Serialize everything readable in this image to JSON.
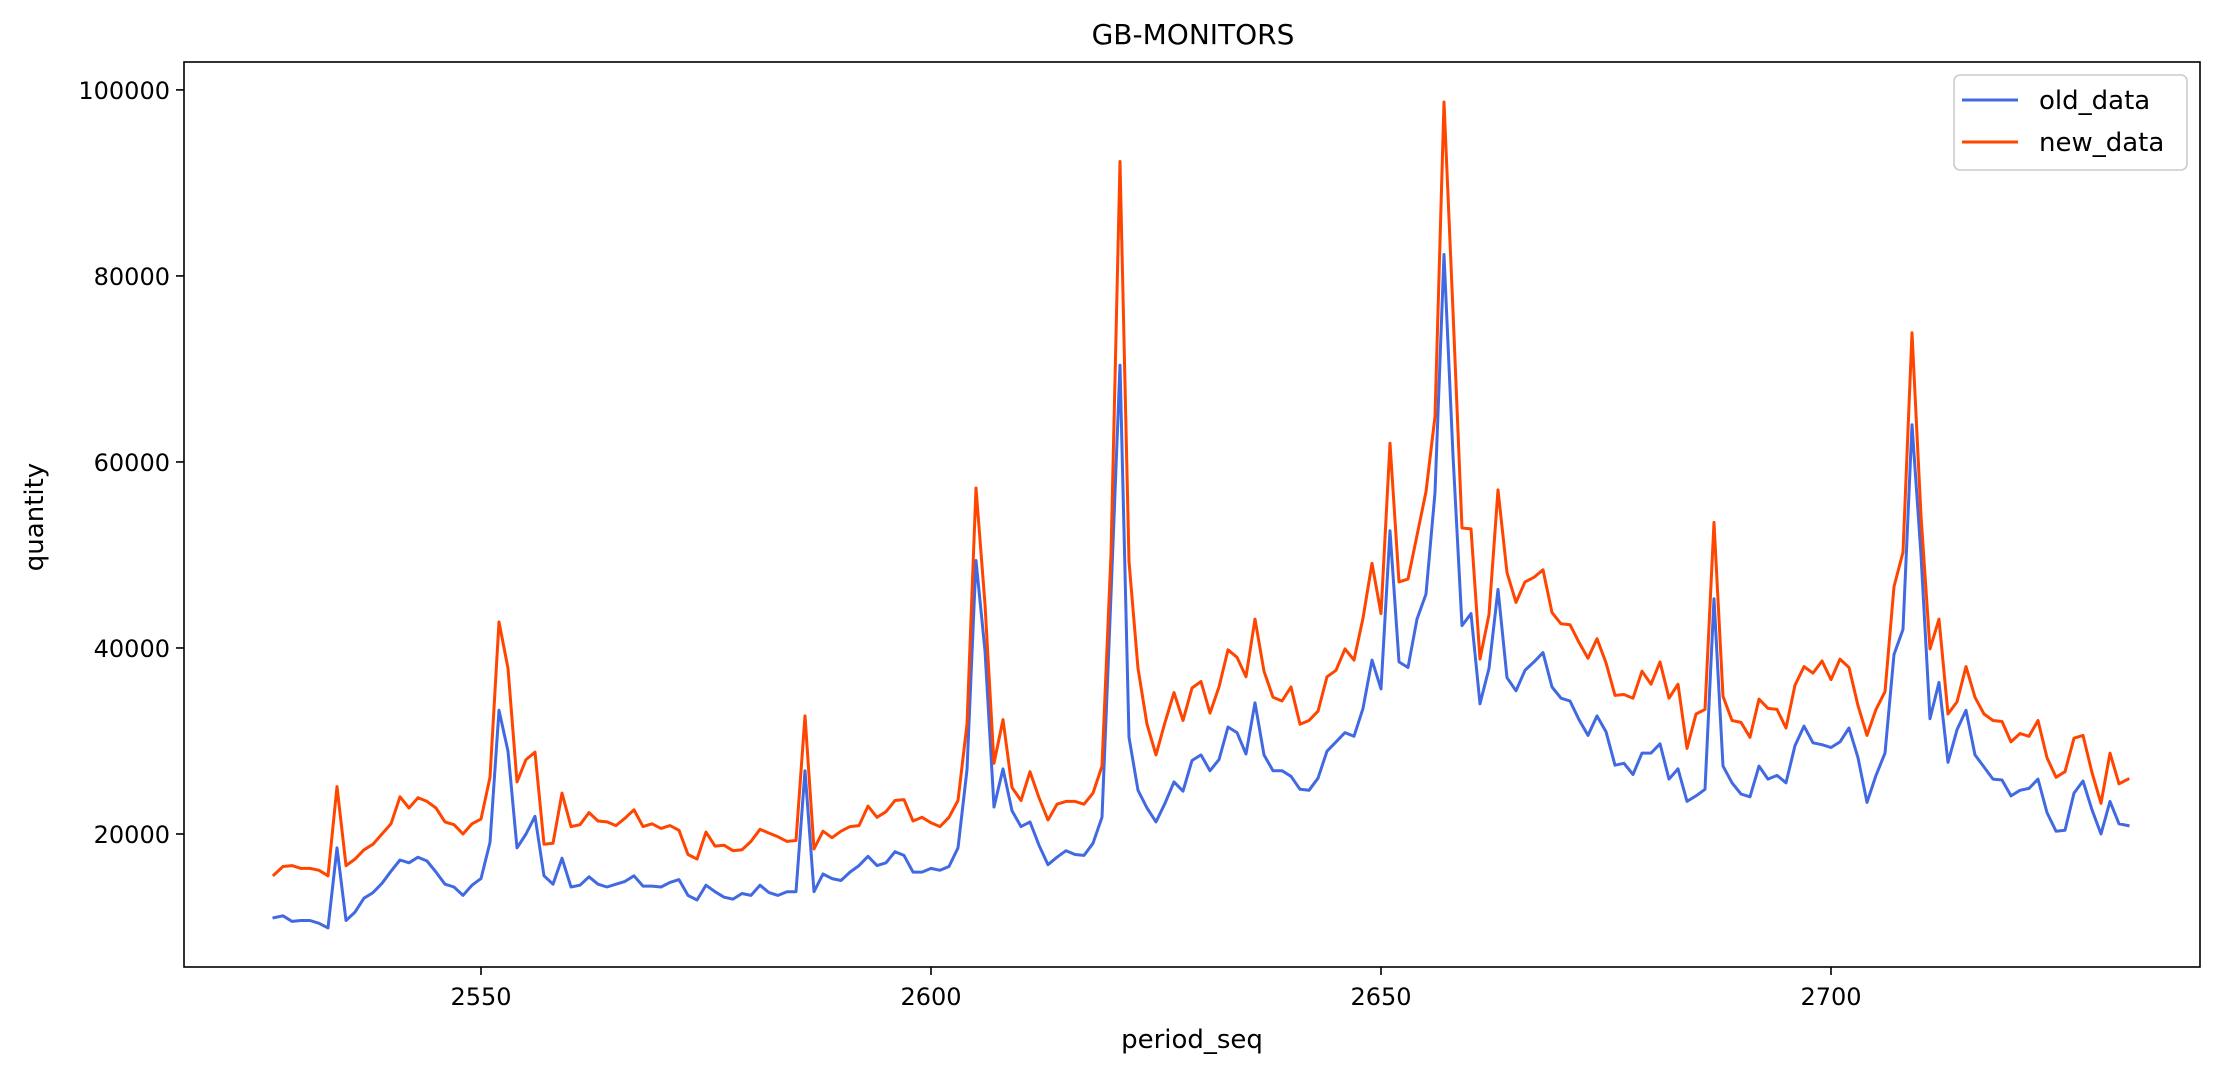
{
  "chart_data": {
    "type": "line",
    "title": "GB-MONITORS",
    "xlabel": "period_seq",
    "ylabel": "quantity",
    "xlim": [
      2517,
      2741
    ],
    "ylim": [
      5700,
      103000
    ],
    "xticks": [
      2550,
      2600,
      2650,
      2700
    ],
    "yticks": [
      20000,
      40000,
      60000,
      80000,
      100000
    ],
    "grid": false,
    "legend_position": "top-right",
    "x": [
      2527,
      2528,
      2529,
      2530,
      2531,
      2532,
      2533,
      2534,
      2535,
      2536,
      2537,
      2538,
      2539,
      2540,
      2541,
      2542,
      2543,
      2544,
      2545,
      2546,
      2547,
      2548,
      2549,
      2550,
      2551,
      2552,
      2553,
      2554,
      2555,
      2556,
      2557,
      2558,
      2559,
      2560,
      2561,
      2562,
      2563,
      2564,
      2565,
      2566,
      2567,
      2568,
      2569,
      2570,
      2571,
      2572,
      2573,
      2574,
      2575,
      2576,
      2577,
      2578,
      2579,
      2580,
      2581,
      2582,
      2583,
      2584,
      2585,
      2586,
      2587,
      2588,
      2589,
      2590,
      2591,
      2592,
      2593,
      2594,
      2595,
      2596,
      2597,
      2598,
      2599,
      2600,
      2601,
      2602,
      2603,
      2604,
      2605,
      2606,
      2607,
      2608,
      2609,
      2610,
      2611,
      2612,
      2613,
      2614,
      2615,
      2616,
      2617,
      2618,
      2619,
      2620,
      2621,
      2622,
      2623,
      2624,
      2625,
      2626,
      2627,
      2628,
      2629,
      2630,
      2631,
      2632,
      2633,
      2634,
      2635,
      2636,
      2637,
      2638,
      2639,
      2640,
      2641,
      2642,
      2643,
      2644,
      2645,
      2646,
      2647,
      2648,
      2649,
      2650,
      2651,
      2652,
      2653,
      2654,
      2655,
      2656,
      2657,
      2658,
      2659,
      2660,
      2661,
      2662,
      2663,
      2664,
      2665,
      2666,
      2667,
      2668,
      2669,
      2670,
      2671,
      2672,
      2673,
      2674,
      2675,
      2676,
      2677,
      2678,
      2679,
      2680,
      2681,
      2682,
      2683,
      2684,
      2685,
      2686,
      2687,
      2688,
      2689,
      2690,
      2691,
      2692,
      2693,
      2694,
      2695,
      2696,
      2697,
      2698,
      2699,
      2700,
      2701,
      2702,
      2703,
      2704,
      2705,
      2706,
      2707,
      2708,
      2709,
      2710,
      2711,
      2712,
      2713,
      2714,
      2715,
      2716,
      2717,
      2718,
      2719,
      2720,
      2721,
      2722,
      2723,
      2724,
      2725,
      2726,
      2727,
      2728,
      2729,
      2730,
      2731,
      2732,
      2733
    ],
    "series": [
      {
        "name": "old_data",
        "color": "#4169e1",
        "values": [
          11000,
          11200,
          10600,
          10700,
          10700,
          10400,
          9900,
          18500,
          10700,
          11600,
          13100,
          13700,
          14700,
          16000,
          17200,
          16900,
          17500,
          17100,
          15900,
          14600,
          14300,
          13400,
          14500,
          15200,
          19100,
          33300,
          28900,
          18500,
          20000,
          21900,
          15500,
          14600,
          17400,
          14300,
          14500,
          15400,
          14600,
          14300,
          14600,
          14900,
          15500,
          14400,
          14400,
          14300,
          14800,
          15100,
          13400,
          12900,
          14500,
          13800,
          13200,
          13000,
          13600,
          13400,
          14500,
          13700,
          13400,
          13800,
          13800,
          26800,
          13800,
          15700,
          15200,
          15000,
          15900,
          16600,
          17600,
          16600,
          16900,
          18100,
          17700,
          15900,
          15900,
          16300,
          16100,
          16500,
          18500,
          26900,
          49400,
          39700,
          22900,
          27000,
          22500,
          20800,
          21300,
          18800,
          16700,
          17500,
          18200,
          17800,
          17700,
          19000,
          21800,
          45700,
          70400,
          30400,
          24700,
          22800,
          21300,
          23300,
          25600,
          24600,
          27900,
          28500,
          26800,
          28000,
          31500,
          30900,
          28600,
          34100,
          28500,
          26800,
          26800,
          26200,
          24800,
          24700,
          26000,
          28900,
          29900,
          30900,
          30500,
          33500,
          38700,
          35600,
          52600,
          38500,
          37900,
          43100,
          45800,
          56700,
          82300,
          60700,
          42400,
          43700,
          34000,
          37800,
          46300,
          36800,
          35400,
          37600,
          38500,
          39500,
          35800,
          34600,
          34300,
          32300,
          30600,
          32700,
          31000,
          27400,
          27600,
          26400,
          28700,
          28700,
          29700,
          25900,
          27000,
          23500,
          24100,
          24800,
          45300,
          27300,
          25500,
          24300,
          24000,
          27300,
          25900,
          26300,
          25500,
          29500,
          31600,
          29800,
          29600,
          29300,
          29900,
          31400,
          28200,
          23400,
          26300,
          28700,
          39300,
          42000,
          64000,
          50000,
          32400,
          36300,
          27700,
          31200,
          33300,
          28500,
          27200,
          25900,
          25800,
          24100,
          24700,
          24900,
          25900,
          22300,
          20300,
          20400,
          24400,
          25700,
          22600,
          20000,
          23500,
          21100,
          20900
        ]
      },
      {
        "name": "new_data",
        "color": "#ff4500",
        "values": [
          15600,
          16500,
          16600,
          16300,
          16300,
          16100,
          15500,
          25100,
          16600,
          17300,
          18300,
          18900,
          20000,
          21100,
          24000,
          22800,
          23900,
          23500,
          22800,
          21300,
          21000,
          20000,
          21100,
          21600,
          26100,
          42800,
          37800,
          25600,
          28000,
          28800,
          18900,
          19000,
          24400,
          20800,
          21000,
          22300,
          21400,
          21300,
          20900,
          21700,
          22600,
          20800,
          21100,
          20600,
          20900,
          20400,
          17800,
          17300,
          20200,
          18700,
          18800,
          18200,
          18300,
          19200,
          20500,
          20100,
          19700,
          19200,
          19300,
          32700,
          18400,
          20300,
          19600,
          20300,
          20800,
          20900,
          23000,
          21800,
          22400,
          23600,
          23700,
          21400,
          21800,
          21200,
          20800,
          21800,
          23600,
          31800,
          57200,
          44700,
          27600,
          32300,
          25000,
          23600,
          26700,
          23900,
          21500,
          23200,
          23500,
          23500,
          23200,
          24400,
          27300,
          50100,
          92300,
          49300,
          37800,
          31800,
          28500,
          32000,
          35200,
          32200,
          35700,
          36400,
          33000,
          35800,
          39800,
          39000,
          36900,
          43100,
          37500,
          34700,
          34300,
          35800,
          31800,
          32200,
          33200,
          36900,
          37600,
          39900,
          38700,
          43200,
          49100,
          43700,
          62000,
          47100,
          47400,
          52100,
          56800,
          64900,
          98700,
          76200,
          52900,
          52800,
          38800,
          43600,
          57000,
          48100,
          44900,
          47100,
          47600,
          48400,
          43800,
          42600,
          42500,
          40600,
          38900,
          41000,
          38400,
          34900,
          35000,
          34600,
          37500,
          36100,
          38500,
          34600,
          36100,
          29200,
          32900,
          33400,
          53500,
          34800,
          32200,
          32000,
          30400,
          34500,
          33500,
          33400,
          31400,
          36000,
          38000,
          37300,
          38600,
          36600,
          38800,
          37900,
          33800,
          30600,
          33400,
          35300,
          46600,
          50300,
          73900,
          54200,
          39900,
          43100,
          32900,
          34200,
          38000,
          34700,
          32900,
          32200,
          32100,
          29900,
          30800,
          30500,
          32200,
          28200,
          26100,
          26700,
          30300,
          30600,
          26600,
          23300,
          28700,
          25400,
          25900
        ]
      }
    ]
  }
}
